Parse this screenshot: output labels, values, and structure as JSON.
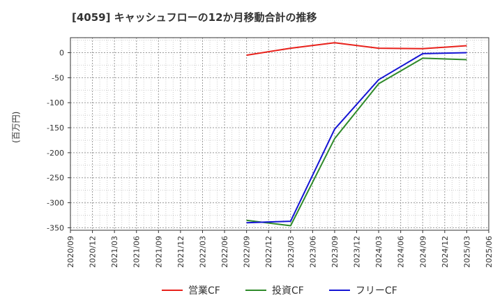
{
  "chart_data": {
    "type": "line",
    "title": "[4059]  キャッシュフローの12か月移動合計の推移",
    "ylabel": "(百万円)",
    "xlabel": "",
    "ylim": [
      -355,
      30
    ],
    "yticks": [
      0,
      -50,
      -100,
      -150,
      -200,
      -250,
      -300,
      -350
    ],
    "x_ticks": [
      "2020/09",
      "2020/12",
      "2021/03",
      "2021/06",
      "2021/09",
      "2021/12",
      "2022/03",
      "2022/06",
      "2022/09",
      "2022/12",
      "2023/03",
      "2023/06",
      "2023/09",
      "2023/12",
      "2024/03",
      "2024/06",
      "2024/09",
      "2024/12",
      "2025/03",
      "2025/06"
    ],
    "grid": true,
    "legend_position": "bottom",
    "series": [
      {
        "name": "営業CF",
        "color": "#e8211b",
        "x": [
          "2022/09",
          "2023/03",
          "2023/09",
          "2024/03",
          "2024/09",
          "2025/03"
        ],
        "values": [
          -5,
          9,
          20,
          9,
          8,
          14
        ]
      },
      {
        "name": "投資CF",
        "color": "#2f8a2a",
        "x": [
          "2022/09",
          "2023/03",
          "2023/09",
          "2024/03",
          "2024/09",
          "2025/03"
        ],
        "values": [
          -335,
          -346,
          -172,
          -62,
          -11,
          -14
        ]
      },
      {
        "name": "フリーCF",
        "color": "#1414d4",
        "x": [
          "2022/09",
          "2023/03",
          "2023/09",
          "2024/03",
          "2024/09",
          "2025/03"
        ],
        "values": [
          -340,
          -337,
          -153,
          -54,
          -2,
          0
        ]
      }
    ]
  }
}
